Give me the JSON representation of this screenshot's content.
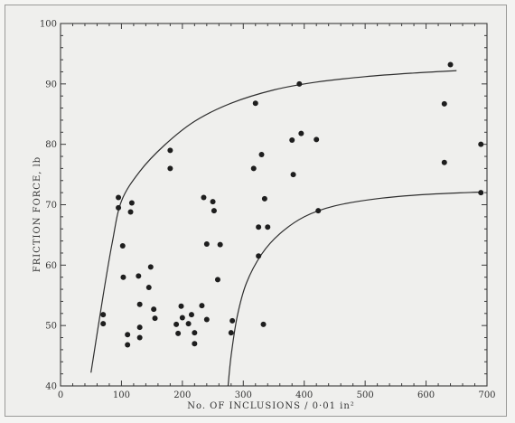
{
  "chart_data": {
    "type": "scatter",
    "title": "",
    "xlabel": "No. OF INCLUSIONS / 0·01 in²",
    "ylabel": "FRICTION FORCE, lb",
    "xlim": [
      0,
      700
    ],
    "ylim": [
      40,
      100
    ],
    "x_ticks": [
      "0",
      "100",
      "200",
      "300",
      "400",
      "500",
      "600",
      "700"
    ],
    "y_ticks": [
      "40",
      "50",
      "60",
      "70",
      "80",
      "90",
      "100"
    ],
    "grid": false,
    "legend": "none",
    "points": [
      [
        70,
        51.8
      ],
      [
        70,
        50.3
      ],
      [
        95,
        71.2
      ],
      [
        95,
        69.5
      ],
      [
        102,
        63.2
      ],
      [
        103,
        58.0
      ],
      [
        110,
        48.5
      ],
      [
        110,
        46.8
      ],
      [
        115,
        68.8
      ],
      [
        117,
        70.3
      ],
      [
        128,
        58.2
      ],
      [
        130,
        53.5
      ],
      [
        130,
        49.7
      ],
      [
        130,
        48.0
      ],
      [
        145,
        56.3
      ],
      [
        148,
        59.7
      ],
      [
        153,
        52.7
      ],
      [
        155,
        51.2
      ],
      [
        180,
        79.0
      ],
      [
        180,
        76.0
      ],
      [
        190,
        50.2
      ],
      [
        193,
        48.7
      ],
      [
        198,
        53.2
      ],
      [
        200,
        51.3
      ],
      [
        210,
        50.3
      ],
      [
        215,
        51.8
      ],
      [
        220,
        48.8
      ],
      [
        220,
        47.0
      ],
      [
        232,
        53.3
      ],
      [
        235,
        71.2
      ],
      [
        240,
        51.0
      ],
      [
        240,
        63.5
      ],
      [
        250,
        70.5
      ],
      [
        252,
        69.0
      ],
      [
        258,
        57.6
      ],
      [
        262,
        63.4
      ],
      [
        280,
        48.8
      ],
      [
        282,
        50.8
      ],
      [
        317,
        76.0
      ],
      [
        320,
        86.8
      ],
      [
        325,
        61.5
      ],
      [
        325,
        66.3
      ],
      [
        330,
        78.3
      ],
      [
        333,
        50.2
      ],
      [
        335,
        71.0
      ],
      [
        340,
        66.3
      ],
      [
        380,
        80.7
      ],
      [
        382,
        75.0
      ],
      [
        392,
        90.0
      ],
      [
        395,
        81.8
      ],
      [
        420,
        80.8
      ],
      [
        423,
        69.0
      ],
      [
        630,
        86.7
      ],
      [
        630,
        77.0
      ],
      [
        640,
        93.2
      ],
      [
        690,
        80.0
      ],
      [
        690,
        72.0
      ]
    ],
    "upper_curve": [
      [
        50,
        42.2
      ],
      [
        70,
        55.0
      ],
      [
        85,
        63.8
      ],
      [
        100,
        70.6
      ],
      [
        130,
        75.5
      ],
      [
        170,
        79.8
      ],
      [
        220,
        83.8
      ],
      [
        280,
        86.8
      ],
      [
        350,
        89.0
      ],
      [
        420,
        90.3
      ],
      [
        500,
        91.2
      ],
      [
        580,
        91.8
      ],
      [
        650,
        92.2
      ]
    ],
    "lower_curve": [
      [
        275,
        40.0
      ],
      [
        280,
        45.0
      ],
      [
        290,
        51.5
      ],
      [
        305,
        57.0
      ],
      [
        330,
        61.8
      ],
      [
        360,
        65.2
      ],
      [
        400,
        68.0
      ],
      [
        450,
        69.8
      ],
      [
        520,
        71.0
      ],
      [
        600,
        71.7
      ],
      [
        690,
        72.1
      ]
    ]
  }
}
